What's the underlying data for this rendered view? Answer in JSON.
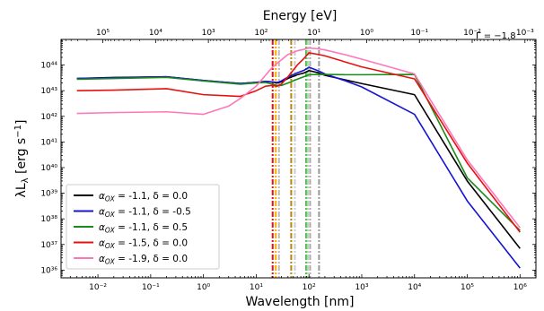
{
  "chart_data": {
    "type": "line",
    "xlabel": "Wavelength [nm]",
    "ylabel": "λL_λ [erg s⁻¹]",
    "top_xlabel": "Energy [eV]",
    "annotation": "Γ = −1.8",
    "x_scale": "log",
    "y_scale": "log",
    "xlim": [
      0.002,
      2000000
    ],
    "ylim": [
      5e+35,
      1e+45
    ],
    "x_tick_labels": [
      "10⁻²",
      "10⁻¹",
      "10⁰",
      "10¹",
      "10²",
      "10³",
      "10⁴",
      "10⁵",
      "10⁶"
    ],
    "x_tick_values": [
      0.01,
      0.1,
      1,
      10,
      100,
      1000,
      10000,
      100000,
      1000000
    ],
    "y_tick_labels": [
      "10³⁶",
      "10³⁷",
      "10³⁸",
      "10³⁹",
      "10⁴⁰",
      "10⁴¹",
      "10⁴²",
      "10⁴³",
      "10⁴⁴"
    ],
    "y_tick_values": [
      1e+36,
      1e+37,
      1e+38,
      1e+39,
      1e+40,
      1e+41,
      1e+42,
      1e+43,
      1e+44
    ],
    "top_tick_labels": [
      "10⁵",
      "10⁴",
      "10³",
      "10²",
      "10¹",
      "10⁰",
      "10⁻¹",
      "10⁻²",
      "10⁻³"
    ],
    "top_tick_energies_eV": [
      100000,
      10000,
      1000,
      100,
      10,
      1,
      0.1,
      0.01,
      0.001
    ],
    "legend_position": "lower-left",
    "series": [
      {
        "name": "α_OX = -1.1, δ = 0.0",
        "label_main": "α",
        "label_sub": "OX",
        "label_rest": " = -1.1, δ = 0.0",
        "color": "#000000",
        "x": [
          0.004,
          0.02,
          0.2,
          1,
          5,
          10,
          15,
          20,
          25,
          30,
          40,
          60,
          80,
          100,
          150,
          200,
          500,
          1000,
          10000,
          100000,
          1000000
        ],
        "y": [
          3e+43,
          3.3e+43,
          3.5e+43,
          2.5e+43,
          1.9e+43,
          2.1e+43,
          2.3e+43,
          2.2e+43,
          2e+43,
          2.2e+43,
          3e+43,
          4.2e+43,
          4.9e+43,
          6.1e+43,
          5e+43,
          4e+43,
          2.6e+43,
          1.9e+43,
          7e+42,
          3e+39,
          7e+36
        ]
      },
      {
        "name": "α_OX = -1.1, δ = -0.5",
        "label_main": "α",
        "label_sub": "OX",
        "label_rest": " = -1.1, δ = -0.5",
        "color": "#1414d2",
        "x": [
          0.004,
          0.02,
          0.2,
          1,
          5,
          10,
          15,
          20,
          25,
          30,
          40,
          60,
          80,
          100,
          150,
          200,
          500,
          1000,
          10000,
          100000,
          1000000
        ],
        "y": [
          3e+43,
          3.2e+43,
          3.5e+43,
          2.5e+43,
          1.9e+43,
          2.1e+43,
          2.3e+43,
          2.2e+43,
          2.1e+43,
          2.4e+43,
          3.4e+43,
          5e+43,
          6.2e+43,
          8.2e+43,
          6e+43,
          4.5e+43,
          2.4e+43,
          1.4e+43,
          1.2e+42,
          5e+38,
          1.2e+36
        ]
      },
      {
        "name": "α_OX = -1.1, δ = 0.5",
        "label_main": "α",
        "label_sub": "OX",
        "label_rest": " = -1.1, δ = 0.5",
        "color": "#1a8a1a",
        "x": [
          0.004,
          0.02,
          0.2,
          1,
          5,
          10,
          15,
          20,
          25,
          30,
          40,
          60,
          80,
          100,
          150,
          200,
          500,
          1000,
          10000,
          100000,
          1000000
        ],
        "y": [
          2.8e+43,
          3e+43,
          3.3e+43,
          2.4e+43,
          1.8e+43,
          2e+43,
          2.1e+43,
          1.8e+43,
          1.6e+43,
          1.6e+43,
          2e+43,
          2.8e+43,
          3.5e+43,
          4.2e+43,
          4.3e+43,
          4.3e+43,
          4.2e+43,
          4.2e+43,
          4.3e+43,
          4e+39,
          3.5e+37
        ]
      },
      {
        "name": "α_OX = -1.5, δ = 0.0",
        "label_main": "α",
        "label_sub": "OX",
        "label_rest": " = -1.5, δ = 0.0",
        "color": "#e81010",
        "x": [
          0.004,
          0.02,
          0.2,
          1,
          5,
          10,
          15,
          20,
          25,
          30,
          40,
          60,
          80,
          100,
          150,
          200,
          500,
          1000,
          10000,
          100000,
          1000000
        ],
        "y": [
          1e+43,
          1.05e+43,
          1.2e+43,
          7e+42,
          6e+42,
          1e+43,
          1.5e+43,
          1.6e+43,
          1.5e+43,
          1.8e+43,
          3.5e+43,
          1e+44,
          1.8e+44,
          3e+44,
          2.6e+44,
          2.3e+44,
          1.3e+44,
          8.5e+43,
          2.9e+43,
          1.5e+40,
          3e+37
        ]
      },
      {
        "name": "α_OX = -1.9, δ = 0.0",
        "label_main": "α",
        "label_sub": "OX",
        "label_rest": " = -1.9, δ = 0.0",
        "color": "#ff77bb",
        "x": [
          0.004,
          0.02,
          0.2,
          1,
          3,
          5,
          10,
          15,
          20,
          25,
          30,
          40,
          60,
          80,
          100,
          150,
          200,
          500,
          1000,
          10000,
          100000,
          1000000
        ],
        "y": [
          1.3e+42,
          1.4e+42,
          1.5e+42,
          1.2e+42,
          2.5e+42,
          5e+42,
          1.5e+43,
          4e+43,
          8e+43,
          1.2e+44,
          1.6e+44,
          2.6e+44,
          3.6e+44,
          4.1e+44,
          4.6e+44,
          4.3e+44,
          3.9e+44,
          2.5e+44,
          1.7e+44,
          4.5e+43,
          2e+40,
          4.5e+37
        ]
      }
    ],
    "vlines": [
      {
        "x": 20.5,
        "color": "#e81010",
        "dash": "6,2,2,2"
      },
      {
        "x": 23.5,
        "color": "#ffaa00",
        "dash": "6,2,2,2"
      },
      {
        "x": 27,
        "color": "#bbbbbb",
        "dash": "6,2,2,2"
      },
      {
        "x": 46,
        "color": "#b8860b",
        "dash": "6,2,2,2"
      },
      {
        "x": 54,
        "color": "#cccccc",
        "dash": "6,2,2,2"
      },
      {
        "x": 88,
        "color": "#55bb55",
        "dash": "6,2,2,2"
      },
      {
        "x": 95,
        "color": "#aaddaa",
        "dash": "6,2,2,2"
      },
      {
        "x": 105,
        "color": "#aaaaaa",
        "dash": "6,2,2,2"
      },
      {
        "x": 155,
        "color": "#999999",
        "dash": "6,2,2,2"
      }
    ]
  }
}
